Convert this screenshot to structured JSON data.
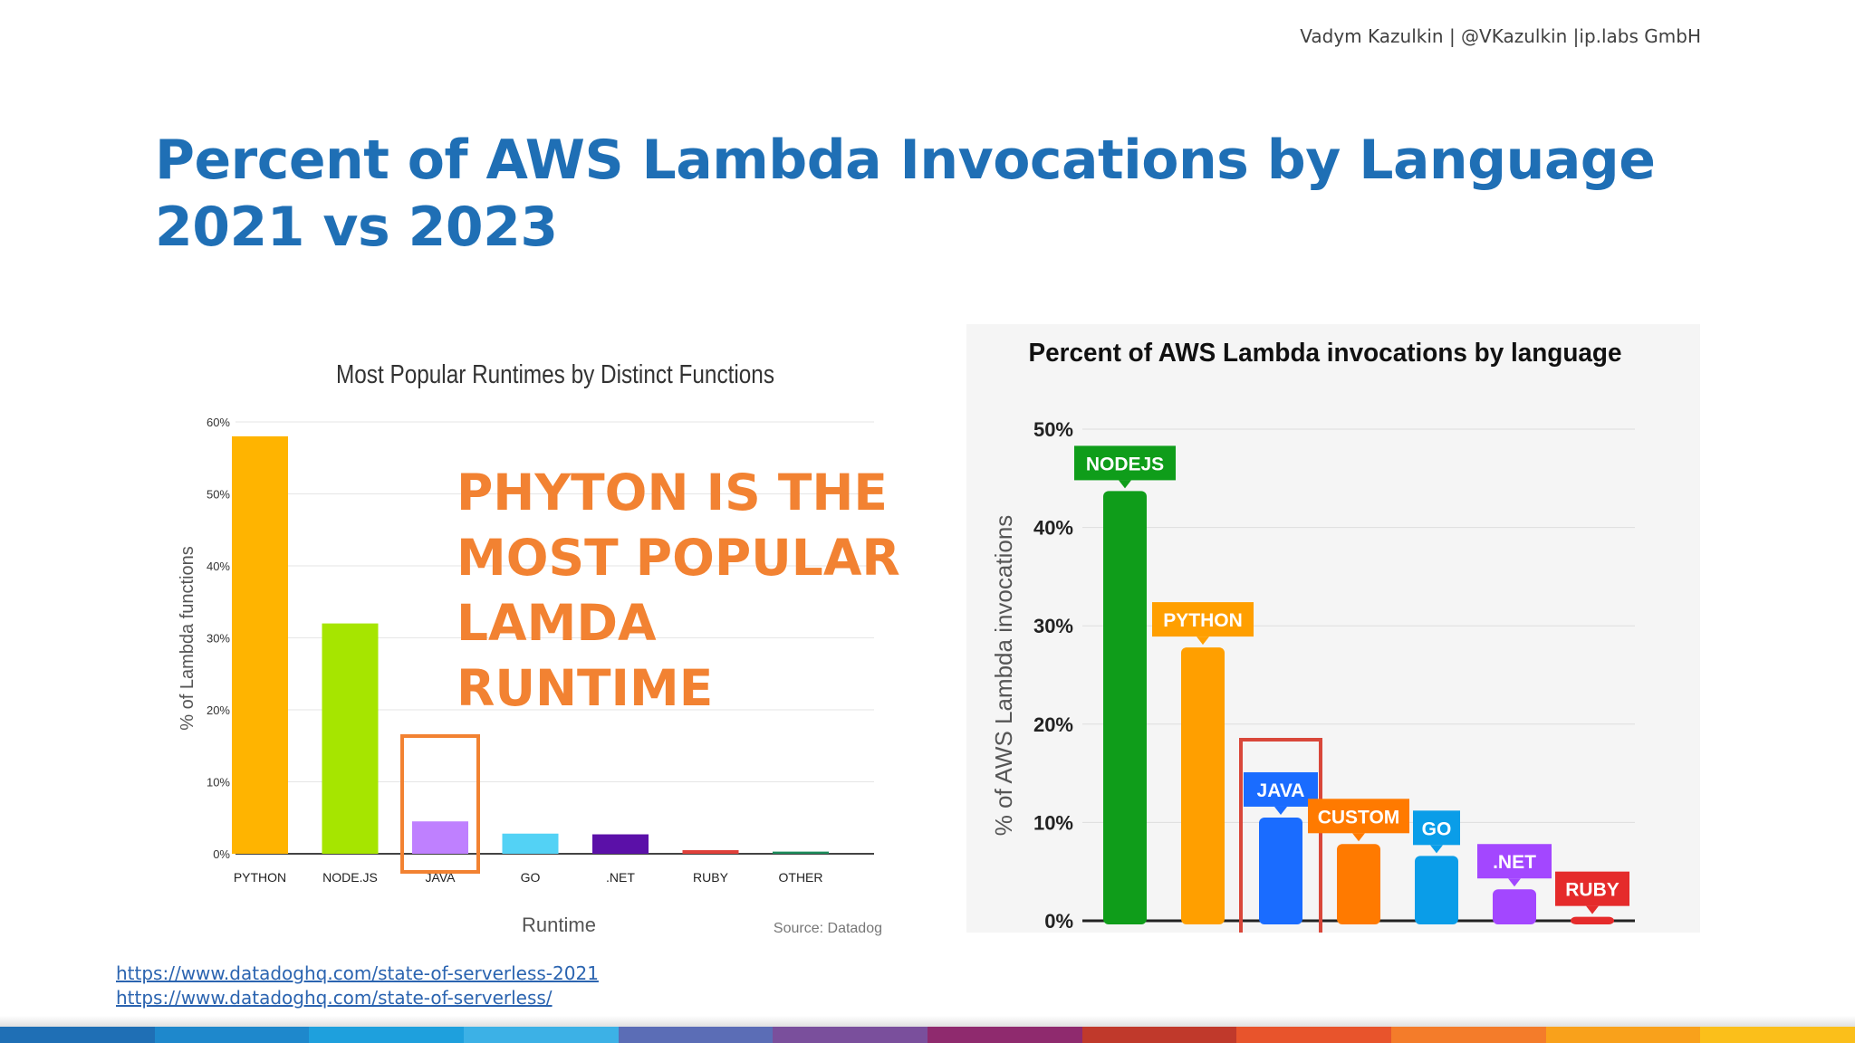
{
  "header": {
    "author_line": "Vadym Kazulkin | @VKazulkin |ip.labs GmbH",
    "title_line1": "Percent of AWS Lambda Invocations by Language",
    "title_line2": "2021 vs 2023"
  },
  "callout": {
    "lines": [
      "PHYTON IS THE",
      "MOST POPULAR",
      "LAMDA",
      "RUNTIME"
    ],
    "color": "#f28232"
  },
  "links": [
    "https://www.datadoghq.com/state-of-serverless-2021",
    "https://www.datadoghq.com/state-of-serverless/"
  ],
  "footer_colors": [
    "#1f6fb5",
    "#1e88cc",
    "#1ea0dd",
    "#3cb1e6",
    "#5b6db6",
    "#7a4f9c",
    "#8f2a6e",
    "#c0392b",
    "#e8542c",
    "#f47c2a",
    "#f9a11b",
    "#fbbf1a"
  ],
  "chart_data": [
    {
      "type": "bar",
      "title": "Most Popular Runtimes by Distinct Functions",
      "xlabel": "Runtime",
      "ylabel": "% of Lambda functions",
      "source": "Source: Datadog",
      "categories": [
        "PYTHON",
        "NODE.JS",
        "JAVA",
        "GO",
        ".NET",
        "RUBY",
        "OTHER"
      ],
      "values": [
        58,
        32,
        4.5,
        2.8,
        2.7,
        0.5,
        0.3
      ],
      "colors": [
        "#ffb400",
        "#a6e500",
        "#bf80ff",
        "#53d2f5",
        "#5b10a8",
        "#e0403a",
        "#1a8a5a"
      ],
      "ylim": [
        0,
        60
      ],
      "yticks": [
        0,
        10,
        20,
        30,
        40,
        50,
        60
      ],
      "ytick_labels": [
        "0%",
        "10%",
        "20%",
        "30%",
        "40%",
        "50%",
        "60%"
      ],
      "grid": true,
      "highlight": "JAVA"
    },
    {
      "type": "bar",
      "title": "Percent of AWS Lambda invocations by language",
      "ylabel": "% of AWS Lambda invocations",
      "categories": [
        "NODEJS",
        "PYTHON",
        "JAVA",
        "CUSTOM",
        "GO",
        ".NET",
        "RUBY"
      ],
      "values": [
        43.7,
        27.8,
        10.5,
        7.8,
        6.6,
        3.2,
        0.4
      ],
      "colors": [
        "#0f9d1a",
        "#ff9f00",
        "#1a6cff",
        "#ff7a00",
        "#0a9de8",
        "#a347ff",
        "#e52b2b"
      ],
      "ylim": [
        0,
        50
      ],
      "yticks": [
        0,
        10,
        20,
        30,
        40,
        50
      ],
      "ytick_labels": [
        "0%",
        "10%",
        "20%",
        "30%",
        "40%",
        "50%"
      ],
      "grid": true,
      "highlight": "JAVA"
    }
  ]
}
